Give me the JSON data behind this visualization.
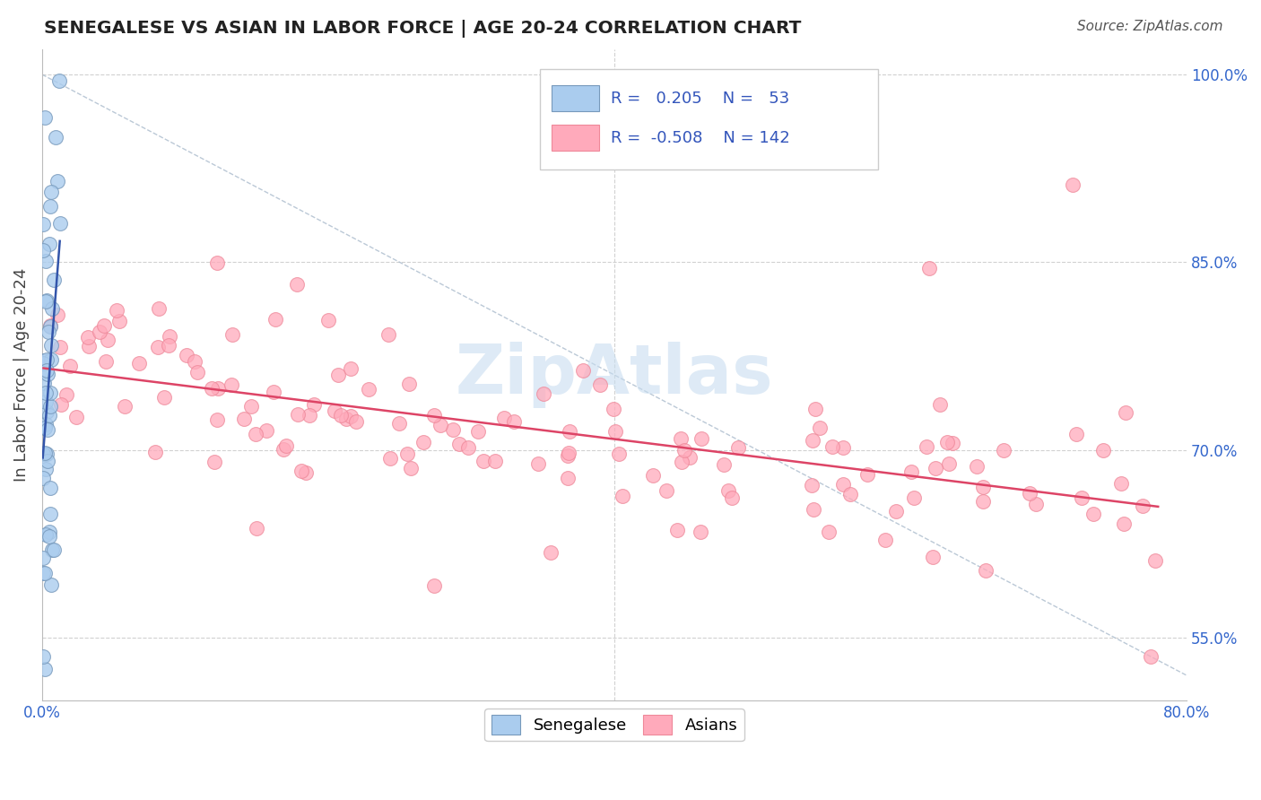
{
  "title": "SENEGALESE VS ASIAN IN LABOR FORCE | AGE 20-24 CORRELATION CHART",
  "source_text": "Source: ZipAtlas.com",
  "ylabel": "In Labor Force | Age 20-24",
  "xlim": [
    0.0,
    0.8
  ],
  "ylim": [
    0.5,
    1.02
  ],
  "ytick_vals": [
    0.55,
    0.7,
    0.85,
    1.0
  ],
  "ytick_labels": [
    "55.0%",
    "70.0%",
    "85.0%",
    "100.0%"
  ],
  "xtick_vals": [
    0.0,
    0.2,
    0.4,
    0.6,
    0.8
  ],
  "xtick_labels": [
    "0.0%",
    "",
    "",
    "",
    "80.0%"
  ],
  "senegalese_color": "#aaccee",
  "senegalese_edge": "#7799bb",
  "asian_color": "#ffaabb",
  "asian_edge": "#ee8899",
  "trend_blue": "#3355aa",
  "trend_pink": "#dd4466",
  "watermark": "ZipAtlas",
  "legend_R1": "0.205",
  "legend_N1": "53",
  "legend_R2": "-0.508",
  "legend_N2": "142",
  "diag_color": "#aabbcc",
  "grid_color": "#cccccc"
}
